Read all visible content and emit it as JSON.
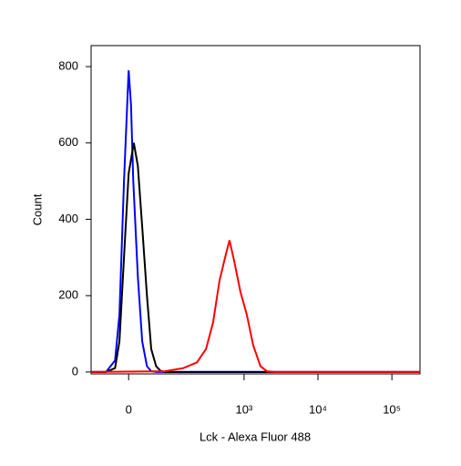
{
  "chart_data": {
    "type": "line",
    "x_label": "Lck - Alexa Fluor 488",
    "y_label": "Count",
    "xscale": "biexponential",
    "xlim": [
      -80,
      240000
    ],
    "ylim": [
      -5,
      855
    ],
    "xticks": [
      0,
      {
        "value": 1000,
        "label": "10³"
      },
      {
        "value": 10000,
        "label": "10⁴"
      },
      {
        "value": 100000,
        "label": "10⁵"
      }
    ],
    "yticks": [
      0,
      200,
      400,
      600,
      800
    ],
    "series": [
      {
        "color": "#0000ff",
        "x": [
          -80,
          -42,
          -24,
          -16,
          -8,
          0,
          4,
          8,
          16,
          24,
          33,
          42,
          53,
          240000
        ],
        "values": [
          0,
          0,
          30,
          150,
          500,
          790,
          700,
          500,
          250,
          80,
          15,
          2,
          0,
          0
        ]
      },
      {
        "color": "#000000",
        "x": [
          -80,
          -42,
          -24,
          -16,
          -8,
          0,
          9,
          16,
          24,
          33,
          42,
          53,
          64,
          76,
          240000
        ],
        "values": [
          0,
          0,
          10,
          80,
          300,
          520,
          600,
          540,
          380,
          200,
          60,
          15,
          3,
          0,
          0
        ]
      },
      {
        "color": "#ff0000",
        "x": [
          -80,
          76,
          146,
          227,
          303,
          380,
          465,
          569,
          634,
          737,
          893,
          1090,
          1330,
          1670,
          2040,
          2550,
          240000
        ],
        "values": [
          0,
          2,
          10,
          25,
          60,
          130,
          240,
          310,
          345,
          290,
          210,
          150,
          70,
          15,
          2,
          0,
          0
        ]
      }
    ]
  }
}
